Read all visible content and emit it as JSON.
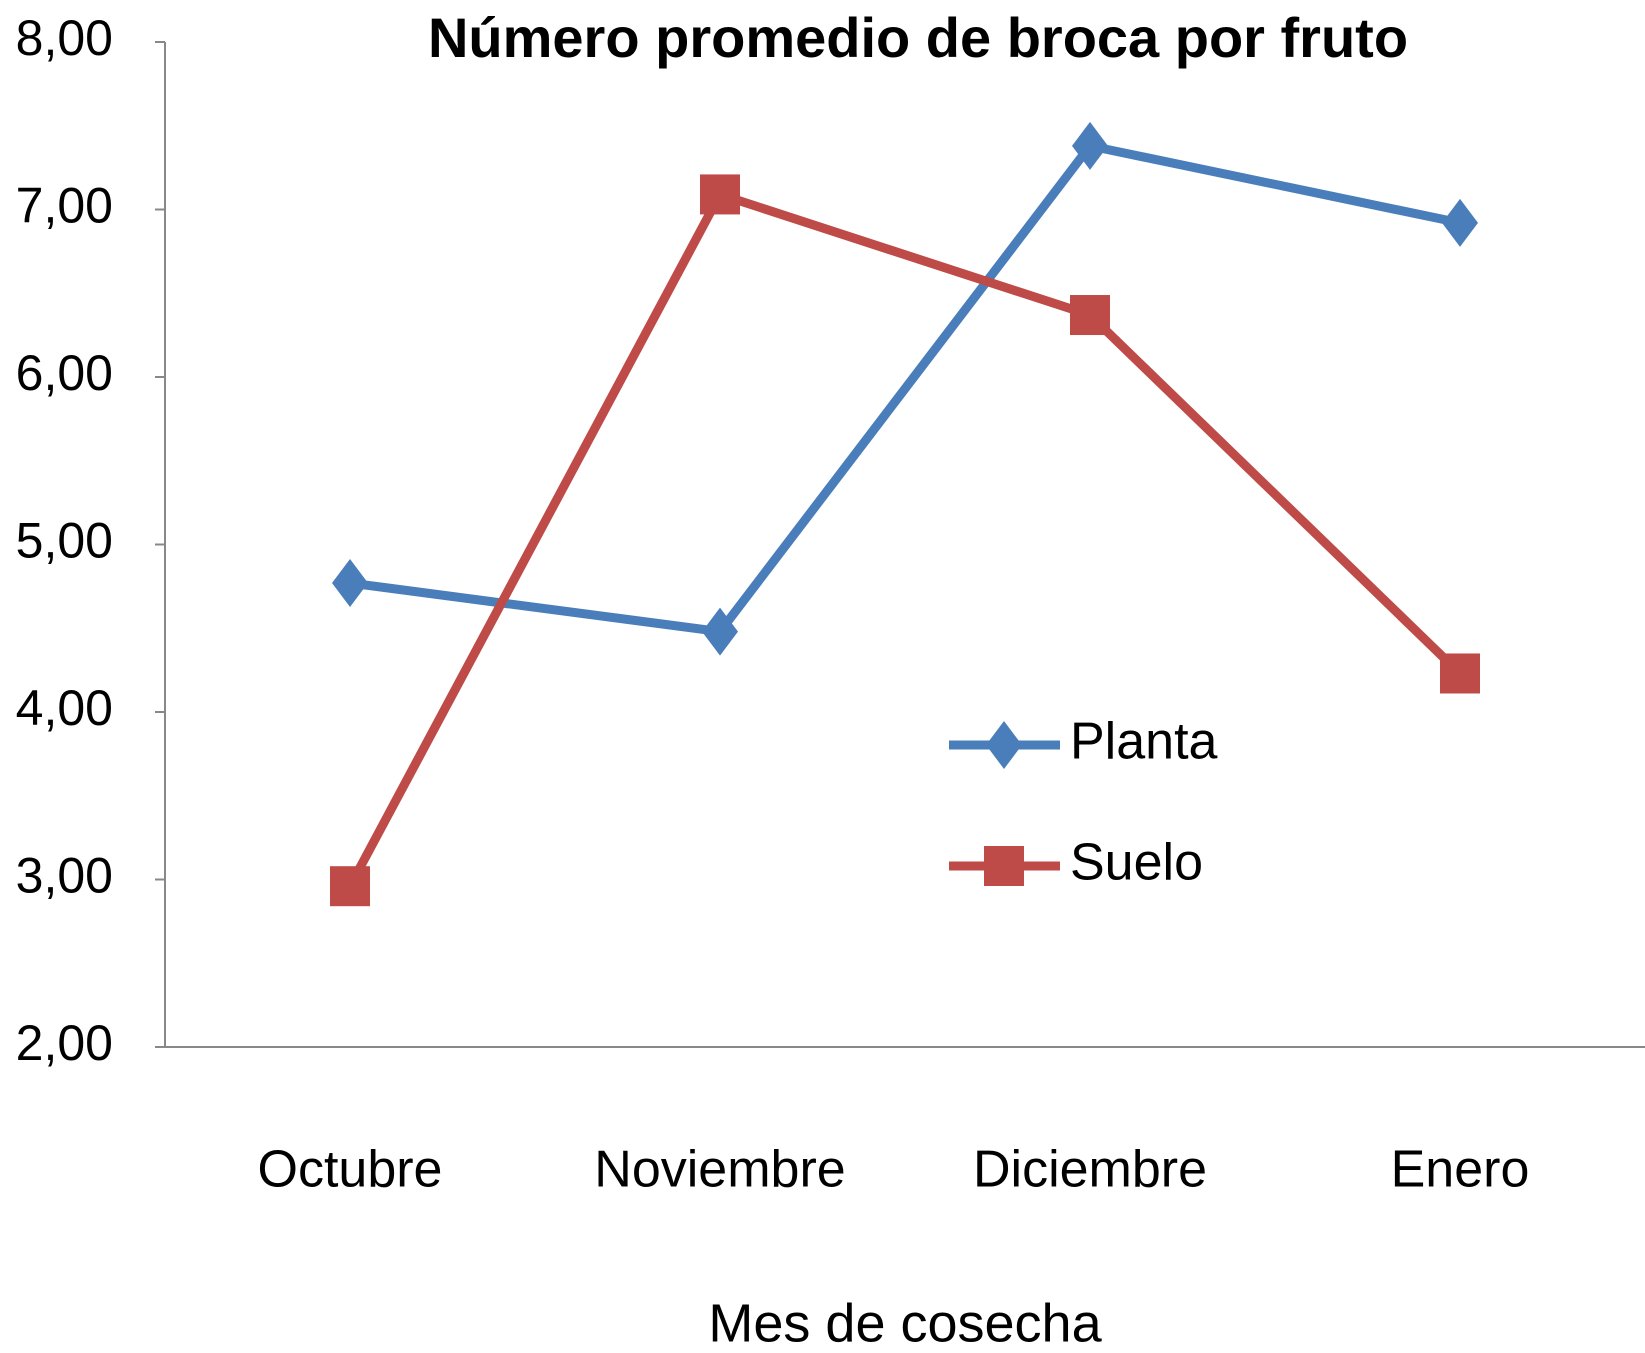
{
  "chart_data": {
    "type": "line",
    "title": "Número promedio  de broca por fruto",
    "x_label": "Mes de cosecha",
    "categories": [
      "Octubre",
      "Noviembre",
      "Diciembre",
      "Enero"
    ],
    "series": [
      {
        "name": "Planta",
        "color": "#4a7ebb",
        "marker": "diamond",
        "values": [
          4.77,
          4.48,
          7.38,
          6.92
        ]
      },
      {
        "name": "Suelo",
        "color": "#be4b48",
        "marker": "square",
        "values": [
          2.96,
          7.09,
          6.37,
          4.23
        ]
      }
    ],
    "ylim": [
      2,
      8
    ],
    "yticks": [
      {
        "value": 2,
        "label": "2,00"
      },
      {
        "value": 3,
        "label": "3,00"
      },
      {
        "value": 4,
        "label": "4,00"
      },
      {
        "value": 5,
        "label": "5,00"
      },
      {
        "value": 6,
        "label": "6,00"
      },
      {
        "value": 7,
        "label": "7,00"
      },
      {
        "value": 8,
        "label": "8,00"
      }
    ],
    "grid": false,
    "legend": "right"
  }
}
